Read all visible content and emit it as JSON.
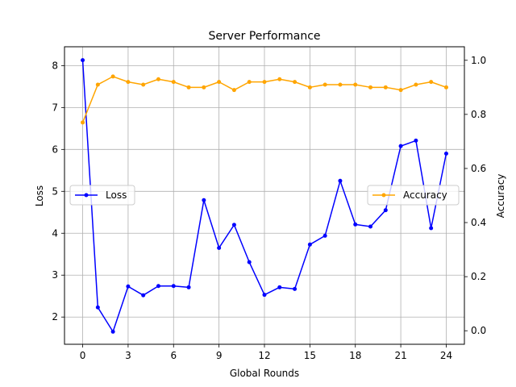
{
  "chart_data": {
    "type": "line",
    "title": "Server Performance",
    "xlabel": "Global Rounds",
    "ylabel_left": "Loss",
    "ylabel_right": "Accuracy",
    "x": [
      0,
      1,
      2,
      3,
      4,
      5,
      6,
      7,
      8,
      9,
      10,
      11,
      12,
      13,
      14,
      15,
      16,
      17,
      18,
      19,
      20,
      21,
      22,
      23,
      24
    ],
    "xlim": [
      -1.2,
      25.2
    ],
    "x_ticks": [
      0,
      3,
      6,
      9,
      12,
      15,
      18,
      21,
      24
    ],
    "ylim_left": [
      1.35,
      8.45
    ],
    "y_ticks_left": [
      2,
      3,
      4,
      5,
      6,
      7,
      8
    ],
    "ylim_right": [
      -0.05,
      1.05
    ],
    "y_ticks_right": [
      0.0,
      0.2,
      0.4,
      0.6,
      0.8,
      1.0
    ],
    "grid": true,
    "series": [
      {
        "name": "Loss",
        "axis": "left",
        "color": "#0000ff",
        "legend_position": "center-left",
        "values": [
          8.13,
          2.23,
          1.65,
          2.73,
          2.52,
          2.74,
          2.74,
          2.71,
          4.79,
          3.65,
          4.2,
          3.31,
          2.53,
          2.71,
          2.67,
          3.73,
          3.94,
          5.25,
          4.21,
          4.16,
          4.55,
          6.08,
          6.21,
          4.12,
          5.9
        ]
      },
      {
        "name": "Accuracy",
        "axis": "right",
        "color": "#ffa500",
        "legend_position": "center-right",
        "values": [
          0.77,
          0.91,
          0.94,
          0.92,
          0.91,
          0.93,
          0.92,
          0.9,
          0.9,
          0.92,
          0.89,
          0.92,
          0.92,
          0.93,
          0.92,
          0.9,
          0.91,
          0.91,
          0.91,
          0.9,
          0.9,
          0.89,
          0.91,
          0.92,
          0.9
        ]
      }
    ]
  }
}
